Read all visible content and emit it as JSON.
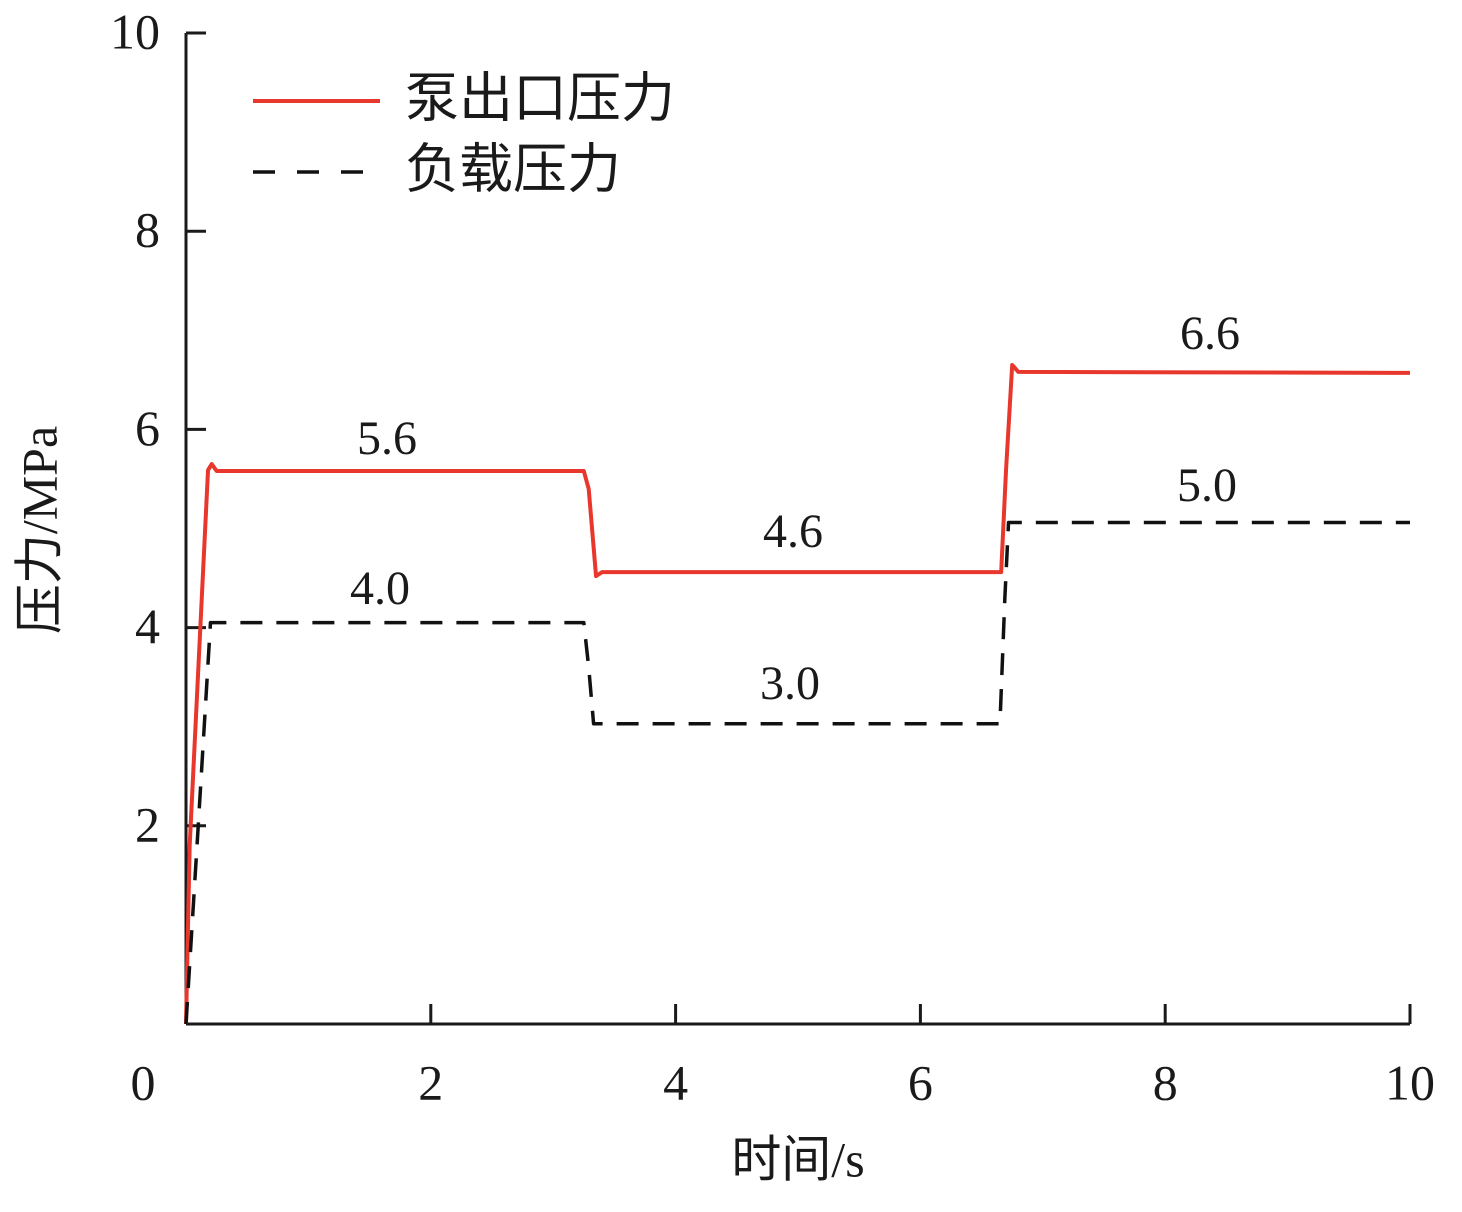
{
  "chart_data": {
    "type": "line",
    "x_label": "时间/s",
    "y_label": "压力/MPa",
    "xlim": [
      0,
      10
    ],
    "ylim": [
      0,
      10
    ],
    "xticks": [
      0,
      2,
      4,
      6,
      8,
      10
    ],
    "yticks": [
      2,
      4,
      6,
      8,
      10
    ],
    "legend": "upper left",
    "series": [
      {
        "name": "泵出口压力",
        "color": "#e8372c",
        "linestyle": "solid",
        "x": [
          0,
          0.03,
          0.18,
          0.21,
          0.25,
          3.25,
          3.29,
          3.35,
          3.4,
          6.66,
          6.7,
          6.75,
          6.8,
          10
        ],
        "values": [
          0,
          1.8,
          5.59,
          5.65,
          5.58,
          5.58,
          5.4,
          4.52,
          4.56,
          4.56,
          5.6,
          6.65,
          6.58,
          6.57
        ]
      },
      {
        "name": "负载压力",
        "color": "#111111",
        "linestyle": "dashed",
        "x": [
          0,
          0.1,
          0.2,
          3.25,
          3.29,
          3.33,
          6.65,
          6.69,
          6.72,
          10
        ],
        "values": [
          0,
          2.0,
          4.05,
          4.05,
          3.6,
          3.03,
          3.03,
          4.3,
          5.06,
          5.06
        ]
      }
    ],
    "annotations": [
      "5.6",
      "4.0",
      "4.6",
      "3.0",
      "6.6",
      "5.0"
    ]
  }
}
